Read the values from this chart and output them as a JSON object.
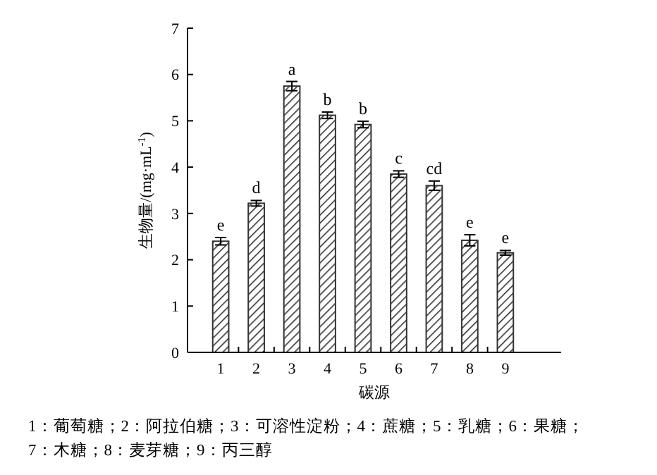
{
  "chart_data": {
    "type": "bar",
    "xlabel": "碳源",
    "ylabel": "生物量/(mg·mL$^{-1}$)",
    "categories": [
      "1",
      "2",
      "3",
      "4",
      "5",
      "6",
      "7",
      "8",
      "9"
    ],
    "values": [
      2.4,
      3.22,
      5.75,
      5.12,
      4.92,
      3.85,
      3.6,
      2.42,
      2.15
    ],
    "errors": [
      0.08,
      0.06,
      0.1,
      0.07,
      0.07,
      0.07,
      0.1,
      0.12,
      0.05
    ],
    "color": "#333333",
    "ylim": [
      0,
      7
    ],
    "yticks": [
      0,
      1,
      2,
      3,
      4,
      5,
      6,
      7
    ],
    "annotations": [
      {
        "text": "e",
        "x": "1",
        "y": 2.48
      },
      {
        "text": "d",
        "x": "2",
        "y": 3.28
      },
      {
        "text": "a",
        "x": "3",
        "y": 5.85
      },
      {
        "text": "b",
        "x": "4",
        "y": 5.19
      },
      {
        "text": "b",
        "x": "5",
        "y": 4.99
      },
      {
        "text": "c",
        "x": "6",
        "y": 3.92
      },
      {
        "text": "cd",
        "x": "7",
        "y": 3.7
      },
      {
        "text": "e",
        "x": "8",
        "y": 2.54
      },
      {
        "text": "e",
        "x": "9",
        "y": 2.2
      },
      "1：葡萄糖；2：阿拉伯糖；3：可溶性淀粉；4：蔗糖；5：乳糖；6：果糖；",
      "7：木糖；8：麦芽糖；9：丙三醇"
    ]
  }
}
